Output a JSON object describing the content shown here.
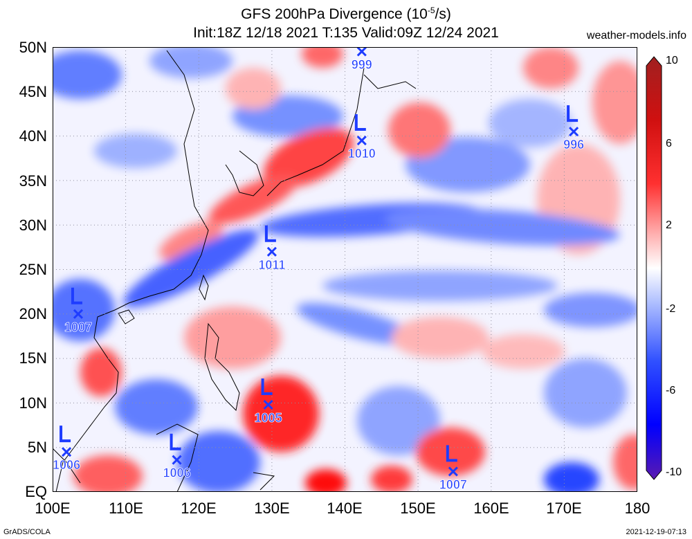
{
  "header": {
    "title_prefix": "GFS 200hPa Divergence (10",
    "title_exp": "-5",
    "title_suffix": "/s)",
    "subtitle": "Init:18Z 12/18 2021 T:135 Valid:09Z 12/24 2021",
    "site": "weather-models.info"
  },
  "footer": {
    "left": "GrADS/COLA",
    "right": "2021-12-19-07:13"
  },
  "axes": {
    "lat_labels": [
      "50N",
      "45N",
      "40N",
      "35N",
      "30N",
      "25N",
      "20N",
      "15N",
      "10N",
      "5N",
      "EQ"
    ],
    "lon_labels": [
      "100E",
      "110E",
      "120E",
      "130E",
      "140E",
      "150E",
      "160E",
      "170E",
      "180"
    ],
    "lat_range": [
      0,
      50
    ],
    "lon_range": [
      100,
      180
    ]
  },
  "colorbar": {
    "labels": [
      "10",
      "6",
      "2",
      "-2",
      "-6",
      "-10"
    ],
    "range": [
      -10,
      10
    ],
    "colors": [
      "#5a1ab0",
      "#0000ff",
      "#4a68ff",
      "#a8b8ff",
      "#ffffff",
      "#ffb0b0",
      "#ff5050",
      "#ff0000",
      "#c01818",
      "#a02020"
    ]
  },
  "lows": [
    {
      "lat": 49.5,
      "lon": 142.3,
      "pressure": "999"
    },
    {
      "lat": 39.5,
      "lon": 142.3,
      "pressure": "1010"
    },
    {
      "lat": 40.5,
      "lon": 171.3,
      "pressure": "996"
    },
    {
      "lat": 27.0,
      "lon": 130.0,
      "pressure": "1011"
    },
    {
      "lat": 20.0,
      "lon": 103.5,
      "pressure": "1007"
    },
    {
      "lat": 9.8,
      "lon": 129.5,
      "pressure": "1005"
    },
    {
      "lat": 4.5,
      "lon": 101.9,
      "pressure": "1006"
    },
    {
      "lat": 3.6,
      "lon": 117.0,
      "pressure": "1006"
    },
    {
      "lat": 2.3,
      "lon": 154.8,
      "pressure": "1007"
    }
  ]
}
